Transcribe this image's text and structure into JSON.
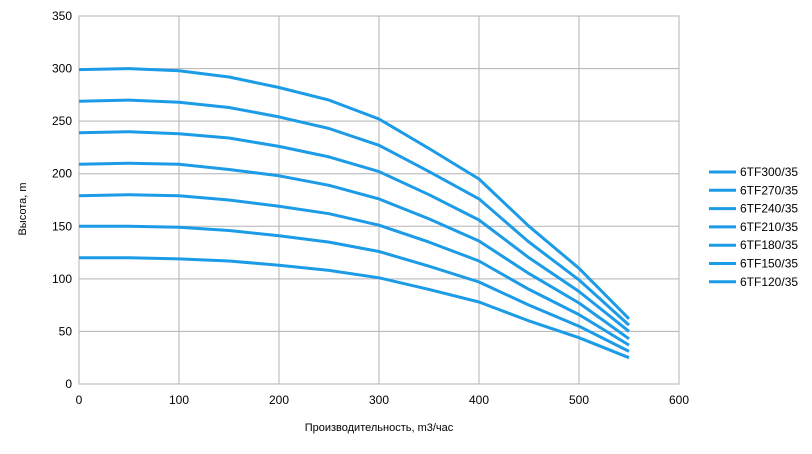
{
  "chart_data": {
    "type": "line",
    "title": "",
    "xlabel": "Производительность, m3/час",
    "ylabel": "Высота, m",
    "xlim": [
      0,
      600
    ],
    "ylim": [
      0,
      350
    ],
    "xticks": [
      0,
      100,
      200,
      300,
      400,
      500,
      600
    ],
    "yticks": [
      0,
      50,
      100,
      150,
      200,
      250,
      300,
      350
    ],
    "grid": true,
    "legend_position": "right",
    "line_color": "#1c9be6",
    "x": [
      0,
      50,
      100,
      150,
      200,
      250,
      300,
      350,
      400,
      450,
      500,
      550
    ],
    "series": [
      {
        "name": "6TF300/35",
        "values": [
          299,
          300,
          298,
          292,
          282,
          270,
          252,
          224,
          195,
          150,
          110,
          62
        ]
      },
      {
        "name": "6TF270/35",
        "values": [
          269,
          270,
          268,
          263,
          254,
          243,
          227,
          202,
          176,
          135,
          99,
          56
        ]
      },
      {
        "name": "6TF240/35",
        "values": [
          239,
          240,
          238,
          234,
          226,
          216,
          202,
          180,
          156,
          120,
          88,
          50
        ]
      },
      {
        "name": "6TF210/35",
        "values": [
          209,
          210,
          209,
          204,
          198,
          189,
          176,
          157,
          136,
          105,
          77,
          43
        ]
      },
      {
        "name": "6TF180/35",
        "values": [
          179,
          180,
          179,
          175,
          169,
          162,
          151,
          135,
          117,
          90,
          66,
          37
        ]
      },
      {
        "name": "6TF150/35",
        "values": [
          150,
          150,
          149,
          146,
          141,
          135,
          126,
          112,
          97,
          75,
          55,
          31
        ]
      },
      {
        "name": "6TF120/35",
        "values": [
          120,
          120,
          119,
          117,
          113,
          108,
          101,
          90,
          78,
          60,
          44,
          25
        ]
      }
    ]
  }
}
